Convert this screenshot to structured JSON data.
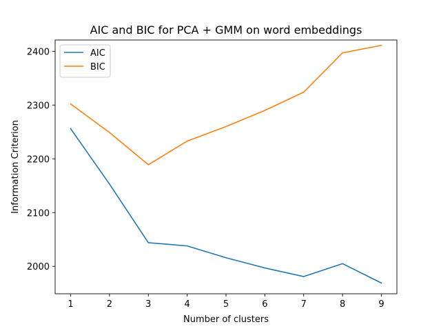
{
  "chart_data": {
    "type": "line",
    "title": "AIC and BIC for PCA + GMM on word embeddings",
    "xlabel": "Number of clusters",
    "ylabel": "Information Criterion",
    "x": [
      1,
      2,
      3,
      4,
      5,
      6,
      7,
      8,
      9
    ],
    "xticks": [
      1,
      2,
      3,
      4,
      5,
      6,
      7,
      8,
      9
    ],
    "yticks": [
      2000,
      2100,
      2200,
      2300,
      2400
    ],
    "xlim": [
      0.6,
      9.4
    ],
    "ylim": [
      1949,
      2421
    ],
    "grid": false,
    "legend_position": "upper left",
    "series": [
      {
        "name": "AIC",
        "color": "#1f77b4",
        "values": [
          2256,
          2153,
          2044,
          2038,
          2016,
          1997,
          1981,
          2005,
          1969
        ]
      },
      {
        "name": "BIC",
        "color": "#ff7f0e",
        "values": [
          2302,
          2249,
          2189,
          2233,
          2260,
          2290,
          2324,
          2397,
          2411
        ]
      }
    ]
  }
}
